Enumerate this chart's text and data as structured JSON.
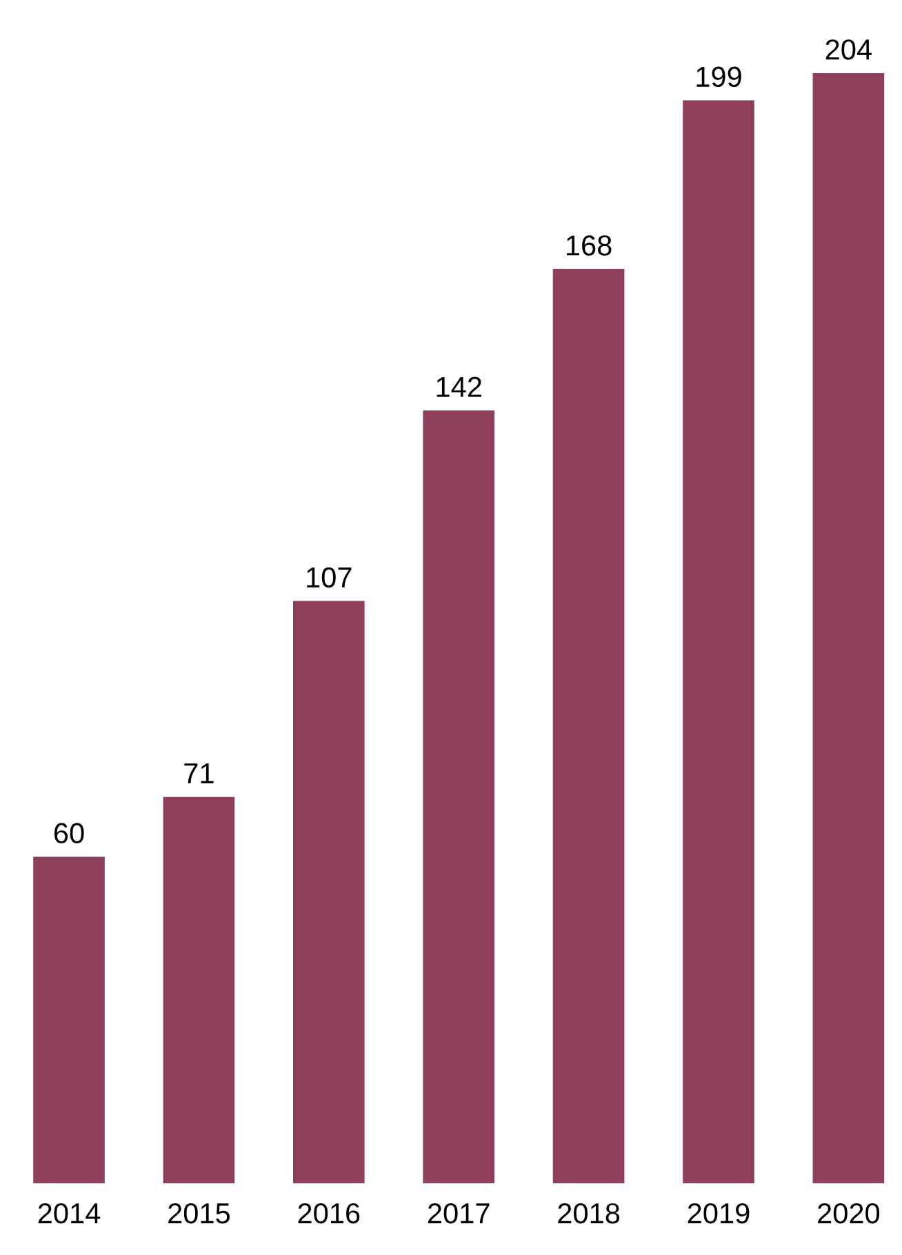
{
  "chart_data": {
    "type": "bar",
    "categories": [
      "2014",
      "2015",
      "2016",
      "2017",
      "2018",
      "2019",
      "2020"
    ],
    "values": [
      60,
      71,
      107,
      142,
      168,
      199,
      204
    ],
    "color": "#8e3f5a",
    "data_labels": true,
    "grid": false,
    "legend": false
  }
}
